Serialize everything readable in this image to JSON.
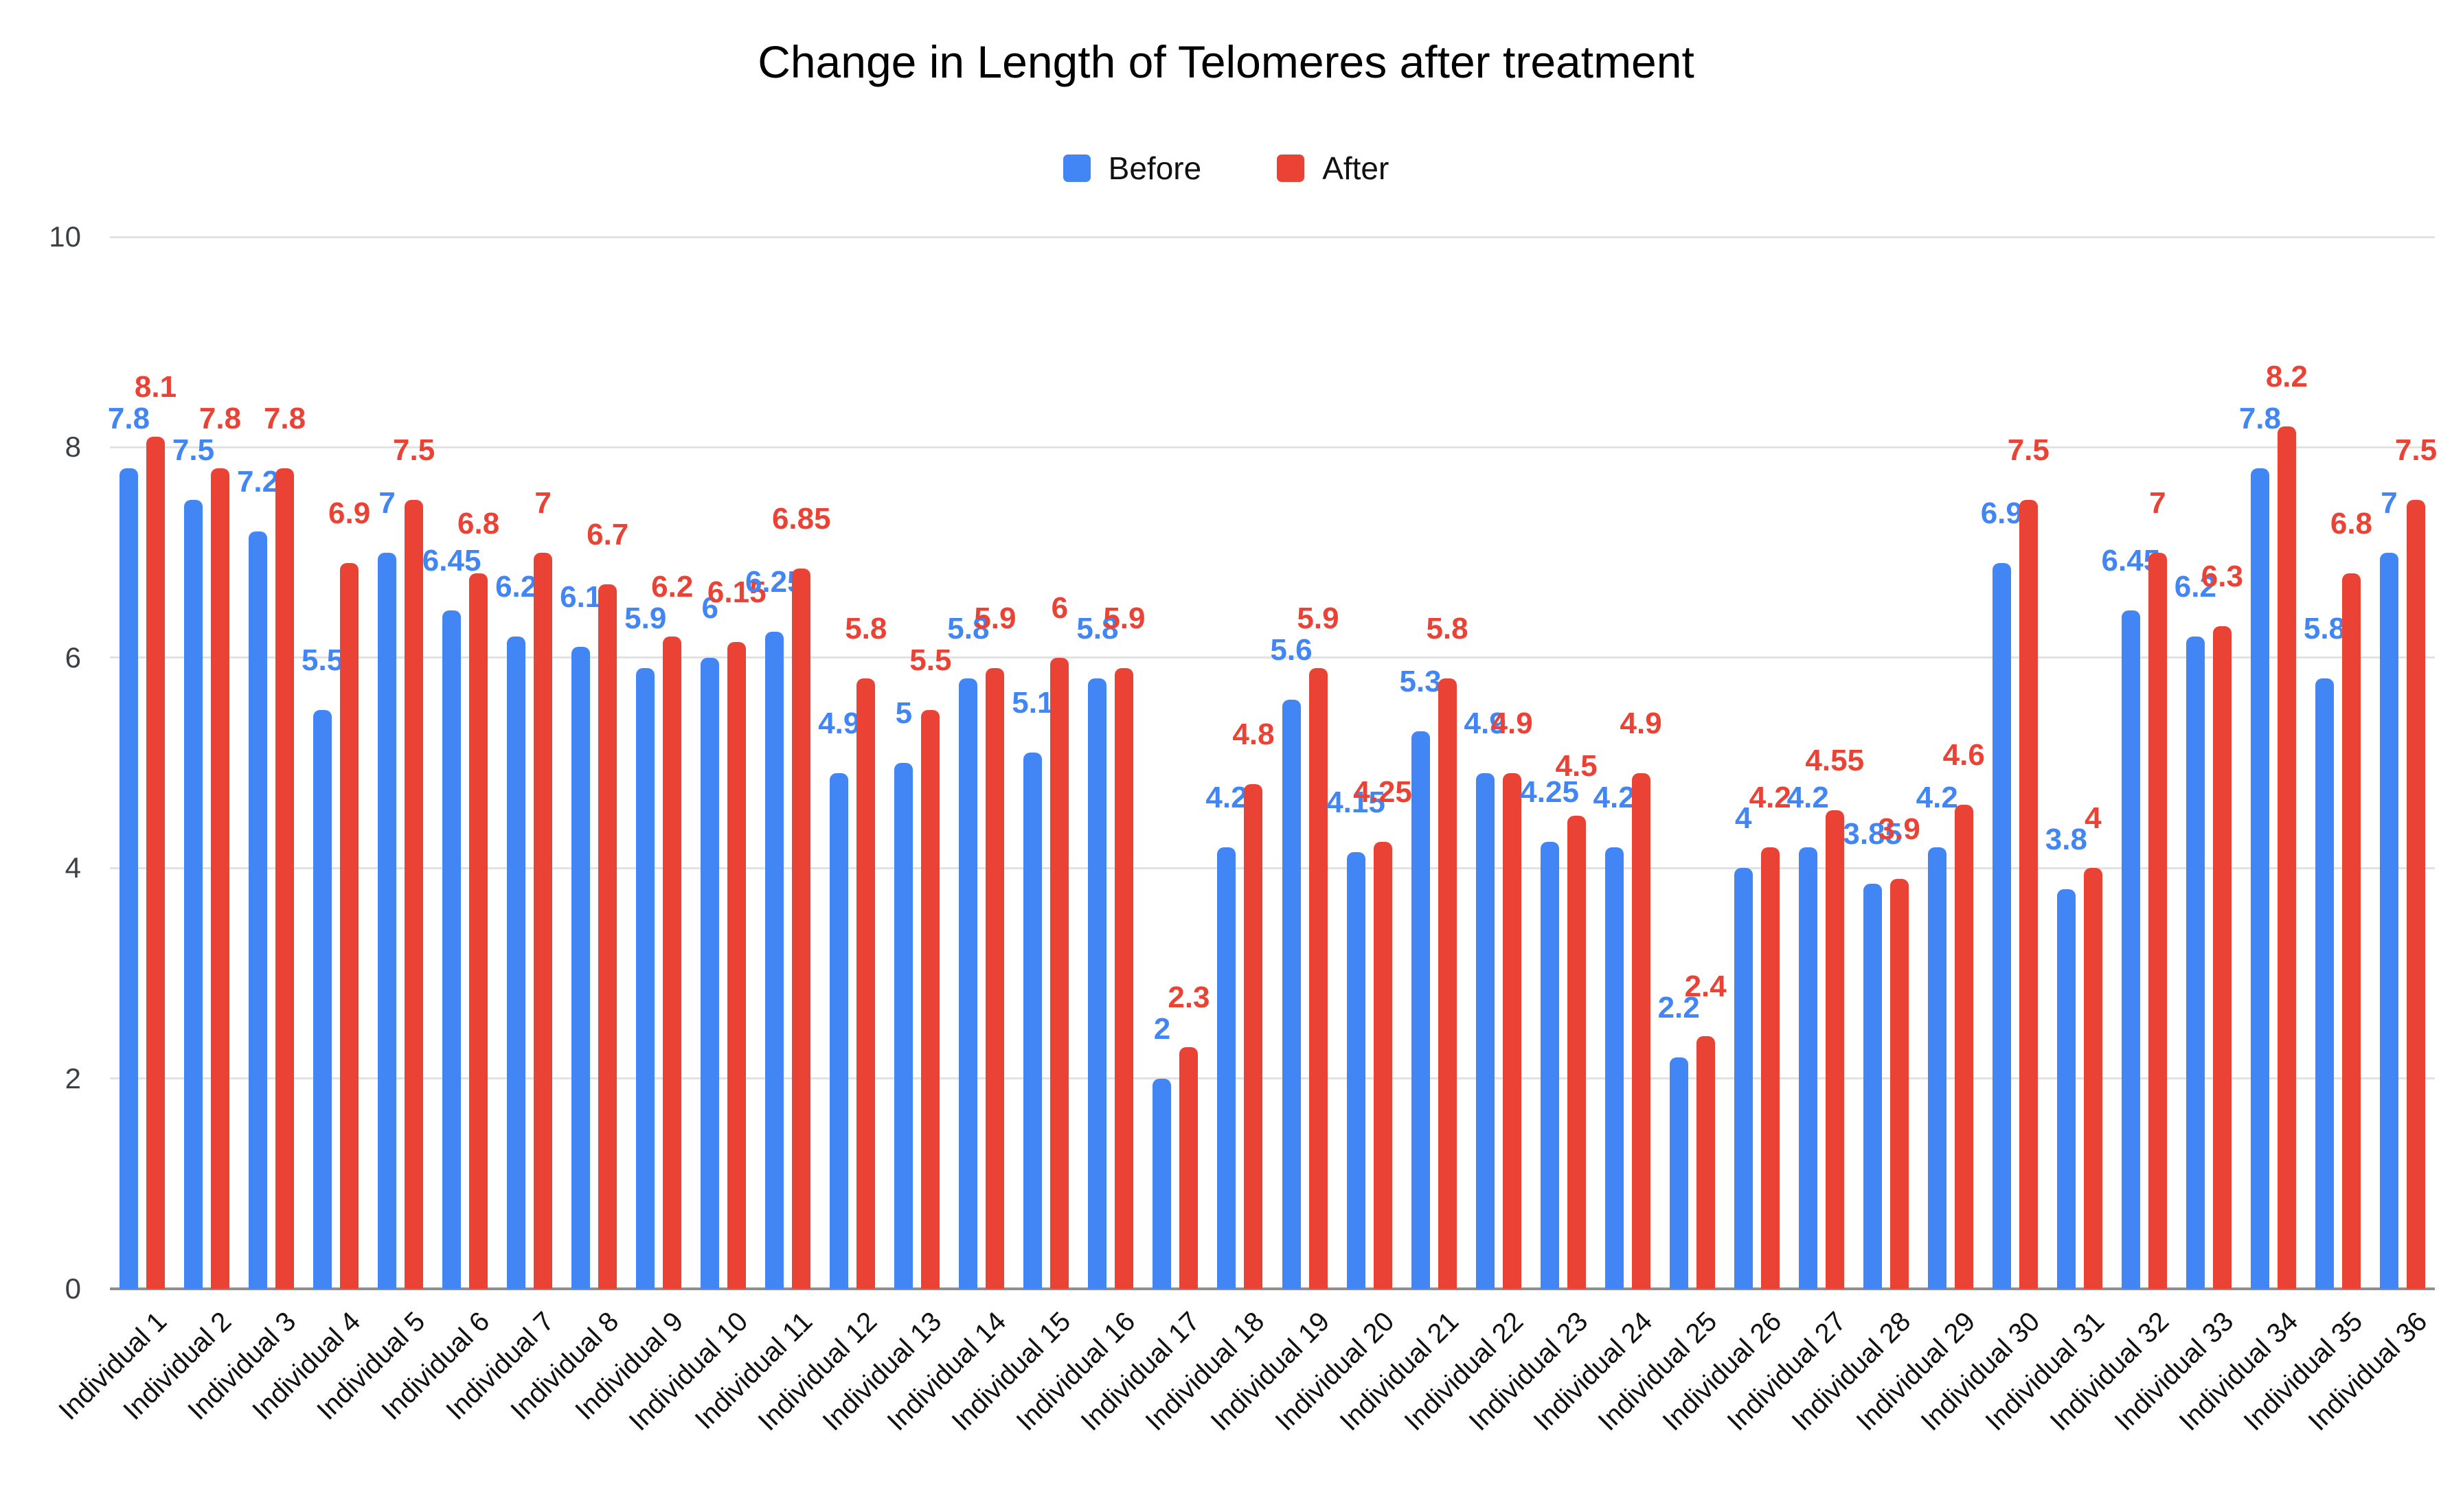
{
  "chart_data": {
    "type": "bar",
    "title": "Change in Length of Telomeres after treatment",
    "xlabel": "",
    "ylabel": "",
    "ylim": [
      0,
      10
    ],
    "yticks": [
      0,
      2,
      4,
      6,
      8,
      10
    ],
    "grid": true,
    "legend_position": "top",
    "categories": [
      "Individual 1",
      "Individual 2",
      "Individual 3",
      "Individual 4",
      "Individual 5",
      "Individual 6",
      "Individual 7",
      "Individual 8",
      "Individual 9",
      "Individual 10",
      "Individual 11",
      "Individual 12",
      "Individual 13",
      "Individual 14",
      "Individual 15",
      "Individual 16",
      "Individual 17",
      "Individual 18",
      "Individual 19",
      "Individual 20",
      "Individual 21",
      "Individual 22",
      "Individual 23",
      "Individual 24",
      "Individual 25",
      "Individual 26",
      "Individual 27",
      "Individual 28",
      "Individual 29",
      "Individual 30",
      "Individual 31",
      "Individual 32",
      "Individual 33",
      "Individual 34",
      "Individual 35",
      "Individual 36"
    ],
    "series": [
      {
        "name": "Before",
        "color": "#4285F4",
        "values": [
          7.8,
          7.5,
          7.2,
          5.5,
          7,
          6.45,
          6.2,
          6.1,
          5.9,
          6,
          6.25,
          4.9,
          5,
          5.8,
          5.1,
          5.8,
          2,
          4.2,
          5.6,
          4.15,
          5.3,
          4.9,
          4.25,
          4.2,
          2.2,
          4,
          4.2,
          3.85,
          4.2,
          6.9,
          3.8,
          6.45,
          6.2,
          7.8,
          5.8,
          7
        ]
      },
      {
        "name": "After",
        "color": "#EA4335",
        "values": [
          8.1,
          7.8,
          7.8,
          6.9,
          7.5,
          6.8,
          7,
          6.7,
          6.2,
          6.15,
          6.85,
          5.8,
          5.5,
          5.9,
          6,
          5.9,
          2.3,
          4.8,
          5.9,
          4.25,
          5.8,
          4.9,
          4.5,
          4.9,
          2.4,
          4.2,
          4.55,
          3.9,
          4.6,
          7.5,
          4,
          7,
          6.3,
          8.2,
          6.8,
          7.5
        ]
      }
    ]
  },
  "colors": {
    "before": "#4285F4",
    "after": "#EA4335",
    "gridline": "#e2e2e2",
    "baseline": "#8f8f8f",
    "tick_text": "#3c4043",
    "axis_text": "#111111"
  }
}
